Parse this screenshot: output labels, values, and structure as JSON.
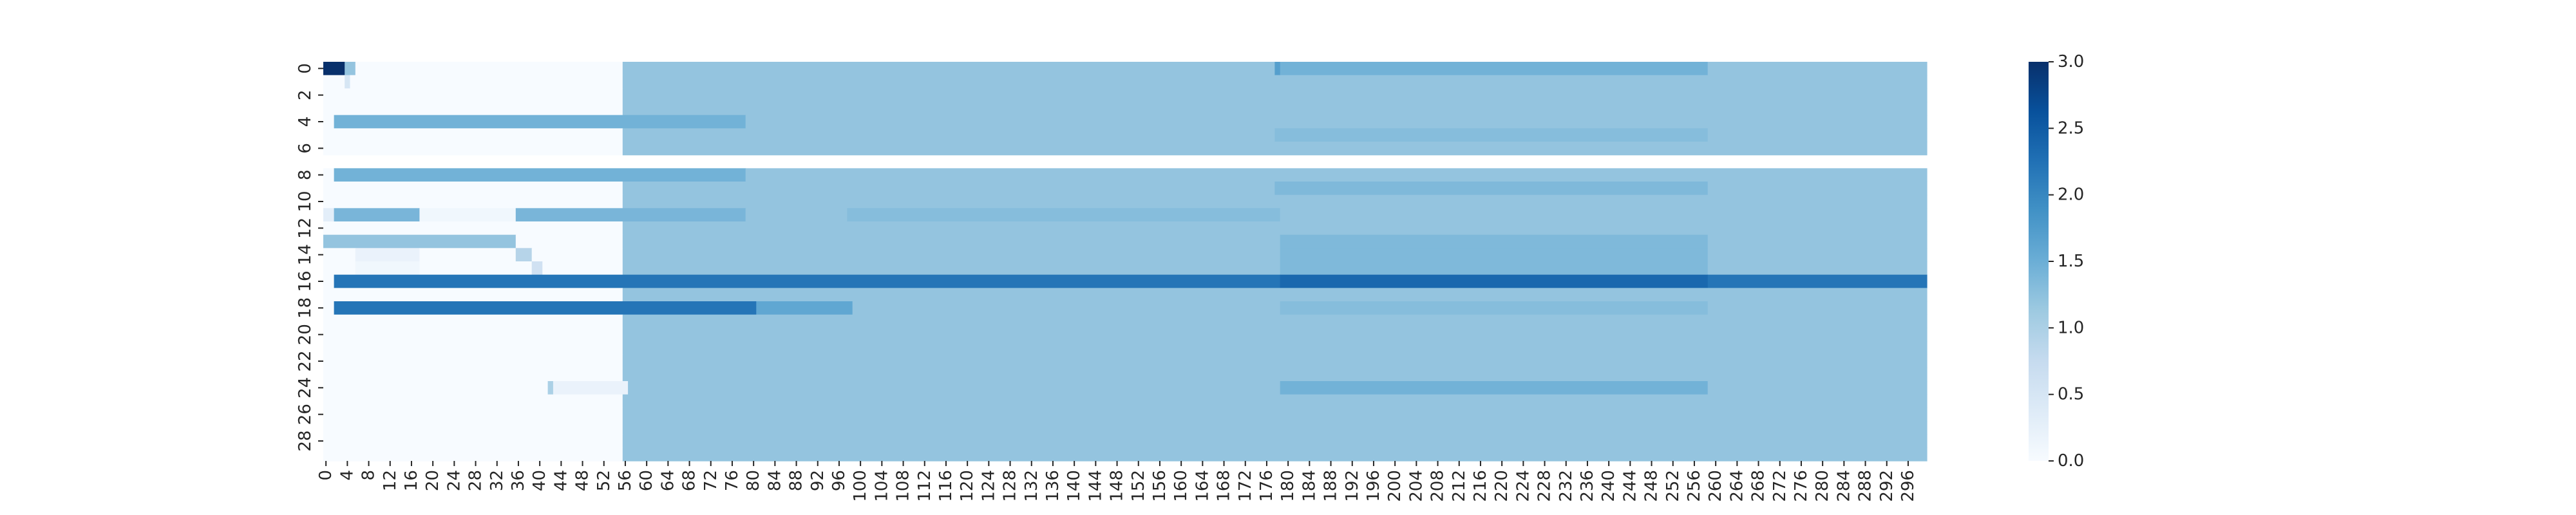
{
  "chart_data": {
    "type": "heatmap",
    "colormap": "Blues",
    "vmin": 0,
    "vmax": 3,
    "n_rows": 30,
    "n_cols": 300,
    "x_tick_labels": [
      "0",
      "4",
      "8",
      "12",
      "16",
      "20",
      "24",
      "28",
      "32",
      "36",
      "40",
      "44",
      "48",
      "52",
      "56",
      "60",
      "64",
      "68",
      "72",
      "76",
      "80",
      "84",
      "88",
      "92",
      "96",
      "100",
      "104",
      "108",
      "112",
      "116",
      "120",
      "124",
      "128",
      "132",
      "136",
      "140",
      "144",
      "148",
      "152",
      "156",
      "160",
      "164",
      "168",
      "172",
      "176",
      "180",
      "184",
      "188",
      "192",
      "196",
      "200",
      "204",
      "208",
      "212",
      "216",
      "220",
      "224",
      "228",
      "232",
      "236",
      "240",
      "244",
      "248",
      "252",
      "256",
      "260",
      "264",
      "268",
      "272",
      "276",
      "280",
      "284",
      "288",
      "292",
      "296"
    ],
    "y_tick_labels": [
      "0",
      "2",
      "4",
      "6",
      "8",
      "10",
      "12",
      "14",
      "16",
      "18",
      "20",
      "22",
      "24",
      "26",
      "28"
    ],
    "colorbar_ticks": [
      "0.0",
      "0.5",
      "1.0",
      "1.5",
      "2.0",
      "2.5",
      "3.0"
    ],
    "default_value_after_col_56": 1.2,
    "blank_rows": [
      7
    ],
    "regions": [
      {
        "rows": [
          0,
          0
        ],
        "cols": [
          0,
          3
        ],
        "value": 3.0
      },
      {
        "rows": [
          0,
          0
        ],
        "cols": [
          4,
          5
        ],
        "value": 1.2
      },
      {
        "rows": [
          1,
          1
        ],
        "cols": [
          4,
          4
        ],
        "value": 0.5
      },
      {
        "rows": [
          0,
          0
        ],
        "cols": [
          178,
          178
        ],
        "value": 1.7
      },
      {
        "rows": [
          0,
          0
        ],
        "cols": [
          179,
          258
        ],
        "value": 1.45
      },
      {
        "rows": [
          4,
          4
        ],
        "cols": [
          2,
          78
        ],
        "value": 1.45
      },
      {
        "rows": [
          5,
          5
        ],
        "cols": [
          178,
          258
        ],
        "value": 1.3
      },
      {
        "rows": [
          8,
          8
        ],
        "cols": [
          2,
          78
        ],
        "value": 1.45
      },
      {
        "rows": [
          9,
          9
        ],
        "cols": [
          178,
          258
        ],
        "value": 1.35
      },
      {
        "rows": [
          11,
          11
        ],
        "cols": [
          2,
          78
        ],
        "value": 1.4
      },
      {
        "rows": [
          11,
          11
        ],
        "cols": [
          98,
          178
        ],
        "value": 1.3
      },
      {
        "rows": [
          11,
          11
        ],
        "cols": [
          0,
          1
        ],
        "value": 0.3
      },
      {
        "rows": [
          11,
          11
        ],
        "cols": [
          18,
          35
        ],
        "value": 0.1
      },
      {
        "rows": [
          13,
          13
        ],
        "cols": [
          0,
          35
        ],
        "value": 1.2
      },
      {
        "rows": [
          14,
          14
        ],
        "cols": [
          36,
          38
        ],
        "value": 0.9
      },
      {
        "rows": [
          14,
          14
        ],
        "cols": [
          6,
          17
        ],
        "value": 0.2
      },
      {
        "rows": [
          15,
          15
        ],
        "cols": [
          39,
          40
        ],
        "value": 0.6
      },
      {
        "rows": [
          15,
          15
        ],
        "cols": [
          6,
          17
        ],
        "value": 0.1
      },
      {
        "rows": [
          16,
          16
        ],
        "cols": [
          41,
          41
        ],
        "value": 0.9
      },
      {
        "rows": [
          16,
          16
        ],
        "cols": [
          39,
          40
        ],
        "value": 0.6
      },
      {
        "rows": [
          13,
          15
        ],
        "cols": [
          179,
          258
        ],
        "value": 1.35
      },
      {
        "rows": [
          16,
          16
        ],
        "cols": [
          2,
          299
        ],
        "value": 2.2
      },
      {
        "rows": [
          16,
          16
        ],
        "cols": [
          179,
          258
        ],
        "value": 2.35
      },
      {
        "rows": [
          18,
          18
        ],
        "cols": [
          43,
          56
        ],
        "value": 0.7
      },
      {
        "rows": [
          18,
          18
        ],
        "cols": [
          2,
          80
        ],
        "value": 2.2
      },
      {
        "rows": [
          18,
          18
        ],
        "cols": [
          81,
          98
        ],
        "value": 1.6
      },
      {
        "rows": [
          18,
          18
        ],
        "cols": [
          179,
          258
        ],
        "value": 1.3
      },
      {
        "rows": [
          24,
          24
        ],
        "cols": [
          42,
          42
        ],
        "value": 1.0
      },
      {
        "rows": [
          24,
          24
        ],
        "cols": [
          43,
          56
        ],
        "value": 0.2
      },
      {
        "rows": [
          24,
          24
        ],
        "cols": [
          179,
          258
        ],
        "value": 1.45
      }
    ]
  }
}
